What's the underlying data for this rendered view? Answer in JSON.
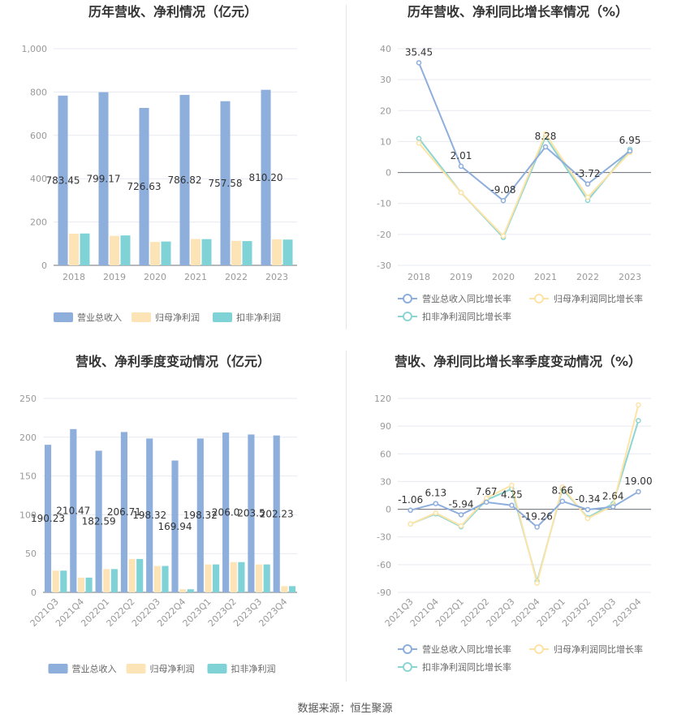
{
  "source": "数据来源：恒生聚源",
  "colors": {
    "revenue": "#8eaedc",
    "net_profit": "#fde4b7",
    "deducted_profit": "#7fd3d6",
    "line_revenue": "#8eaedc",
    "line_net": "#fde4a6",
    "line_deducted": "#8dd5d2",
    "grid": "#e6e9f0",
    "axis_text": "#999999",
    "title": "#333333"
  },
  "chart_data": [
    {
      "type": "bar",
      "title": "历年营收、净利情况（亿元）",
      "categories": [
        "2018",
        "2019",
        "2020",
        "2021",
        "2022",
        "2023"
      ],
      "yticks": [
        "0",
        "200",
        "400",
        "600",
        "800",
        "1,000"
      ],
      "ylim": [
        0,
        1000
      ],
      "grid": true,
      "legend_position": "bottom",
      "series": [
        {
          "name": "营业总收入",
          "values": [
            783.45,
            799.17,
            726.63,
            786.82,
            757.58,
            810.2
          ],
          "labels": [
            "783.45",
            "799.17",
            "726.63",
            "786.82",
            "757.58",
            "810.20"
          ]
        },
        {
          "name": "归母净利润",
          "values": [
            146,
            136,
            108,
            122,
            113,
            120
          ]
        },
        {
          "name": "扣非净利润",
          "values": [
            147,
            138,
            110,
            121,
            112,
            119
          ]
        }
      ]
    },
    {
      "type": "line",
      "title": "历年营收、净利同比增长率情况（%）",
      "categories": [
        "2018",
        "2019",
        "2020",
        "2021",
        "2022",
        "2023"
      ],
      "yticks": [
        "-30",
        "-20",
        "-10",
        "0",
        "10",
        "20",
        "30",
        "40"
      ],
      "ylim": [
        -30,
        40
      ],
      "grid": true,
      "legend_position": "bottom",
      "series": [
        {
          "name": "营业总收入同比增长率",
          "values": [
            35.45,
            2.01,
            -9.08,
            8.28,
            -3.72,
            6.95
          ],
          "labels": [
            "35.45",
            "2.01",
            "-9.08",
            "8.28",
            "-3.72",
            "6.95"
          ]
        },
        {
          "name": "归母净利润同比增长率",
          "values": [
            9.5,
            -6.5,
            -20.5,
            12.5,
            -8.0,
            6.5
          ]
        },
        {
          "name": "扣非净利润同比增长率",
          "values": [
            11.0,
            -6.5,
            -21.0,
            11.5,
            -9.0,
            7.5
          ]
        }
      ]
    },
    {
      "type": "bar",
      "title": "营收、净利季度变动情况（亿元）",
      "categories": [
        "2021Q3",
        "2021Q4",
        "2022Q1",
        "2022Q2",
        "2022Q3",
        "2022Q4",
        "2023Q1",
        "2023Q2",
        "2023Q3",
        "2023Q4"
      ],
      "yticks": [
        "0",
        "50",
        "100",
        "150",
        "200",
        "250"
      ],
      "ylim": [
        0,
        250
      ],
      "grid": true,
      "legend_position": "bottom",
      "series": [
        {
          "name": "营业总收入",
          "values": [
            190.23,
            210.47,
            182.59,
            206.71,
            198.32,
            169.94,
            198.32,
            206.0,
            203.5,
            202.23
          ],
          "labels": [
            "190.23",
            "210.47",
            "182.59",
            "206.71",
            "198.32",
            "169.94",
            "198.32",
            "206.0",
            "203.5",
            "202.23"
          ]
        },
        {
          "name": "归母净利润",
          "values": [
            28,
            19,
            30,
            43,
            34,
            4,
            36,
            39,
            36,
            8
          ]
        },
        {
          "name": "扣非净利润",
          "values": [
            28,
            19,
            30,
            43,
            34,
            4,
            36,
            39,
            36,
            8
          ]
        }
      ]
    },
    {
      "type": "line",
      "title": "营收、净利同比增长率季度变动情况（%）",
      "categories": [
        "2021Q3",
        "2021Q4",
        "2022Q1",
        "2022Q2",
        "2022Q3",
        "2022Q4",
        "2023Q1",
        "2023Q2",
        "2023Q3",
        "2023Q4"
      ],
      "yticks": [
        "-90",
        "-60",
        "-30",
        "0",
        "30",
        "60",
        "90",
        "120"
      ],
      "ylim": [
        -90,
        120
      ],
      "grid": true,
      "legend_position": "bottom",
      "series": [
        {
          "name": "营业总收入同比增长率",
          "values": [
            -1.06,
            6.13,
            -5.94,
            7.67,
            4.25,
            -19.26,
            8.66,
            -0.34,
            2.64,
            19.0
          ],
          "labels": [
            "-1.06",
            "6.13",
            "-5.94",
            "7.67",
            "4.25",
            "-19.26",
            "8.66",
            "-0.34",
            "2.64",
            "19.00"
          ]
        },
        {
          "name": "归母净利润同比增长率",
          "values": [
            -16,
            -4,
            -18,
            12,
            26,
            -80,
            24,
            -10,
            4,
            113
          ]
        },
        {
          "name": "扣非净利润同比增长率",
          "values": [
            -16,
            -5,
            -19,
            10,
            22,
            -78,
            22,
            -9,
            6,
            96
          ]
        }
      ]
    }
  ]
}
